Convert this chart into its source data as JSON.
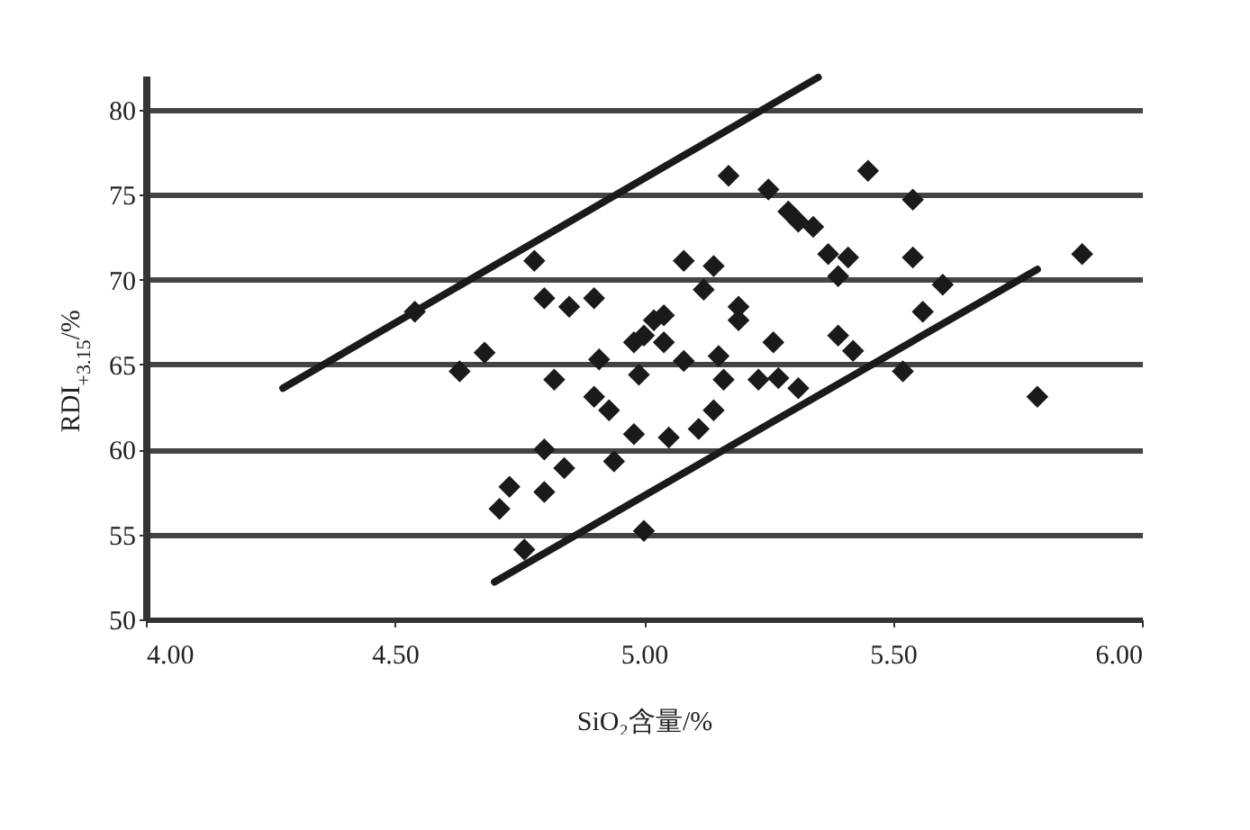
{
  "chart_data": {
    "type": "scatter",
    "xlabel": "SiO₂含量/%",
    "ylabel": "RDI$_{+3.15}$/%",
    "xlim": [
      4.0,
      6.0
    ],
    "xticks": [
      {
        "value": 4.0,
        "label": "4.00"
      },
      {
        "value": 4.5,
        "label": "4.50"
      },
      {
        "value": 5.0,
        "label": "5.00"
      },
      {
        "value": 5.5,
        "label": "5.50"
      },
      {
        "value": 6.0,
        "label": "6.00"
      }
    ],
    "ylim": [
      50,
      82
    ],
    "yticks": [
      50,
      55,
      60,
      65,
      70,
      75,
      80
    ],
    "grid": "y",
    "series": [
      {
        "color": "#1a1a1a",
        "marker": "diamond",
        "x": [
          4.78,
          4.8,
          4.85,
          4.9,
          4.54,
          4.63,
          4.68,
          4.82,
          4.91,
          4.9,
          4.93,
          4.98,
          4.98,
          5.02,
          4.99,
          4.8,
          4.84,
          4.8,
          4.73,
          4.71,
          4.76,
          4.94,
          5.0,
          5.17,
          5.25,
          5.45,
          5.54,
          5.31,
          5.29,
          5.34,
          5.08,
          5.14,
          5.12,
          5.19,
          5.19,
          5.37,
          5.41,
          5.39,
          5.54,
          5.6,
          5.56,
          5.88,
          5.79,
          5.52,
          5.39,
          5.42,
          5.26,
          5.04,
          5.0,
          5.04,
          5.08,
          5.15,
          5.16,
          5.23,
          5.27,
          5.31,
          5.14,
          5.11,
          5.05
        ],
        "values": [
          71.1,
          68.9,
          68.4,
          68.9,
          68.1,
          64.6,
          65.7,
          64.1,
          65.3,
          63.1,
          62.3,
          60.9,
          66.3,
          67.6,
          64.4,
          60.0,
          58.9,
          57.5,
          57.8,
          56.5,
          54.1,
          59.3,
          55.2,
          76.1,
          75.3,
          76.4,
          74.7,
          73.4,
          74.0,
          73.1,
          71.1,
          70.8,
          69.4,
          68.4,
          67.6,
          71.5,
          71.3,
          70.2,
          71.3,
          69.7,
          68.1,
          71.5,
          63.1,
          64.6,
          66.7,
          65.8,
          66.3,
          67.9,
          66.7,
          66.3,
          65.2,
          65.5,
          64.1,
          64.1,
          64.2,
          63.6,
          62.3,
          61.2,
          60.7
        ]
      },
      {
        "type": "line",
        "color": "#1a1a1a",
        "x": [
          4.275,
          5.35
        ],
        "values": [
          63.6,
          81.9
        ]
      },
      {
        "type": "line",
        "color": "#1a1a1a",
        "x": [
          4.7,
          5.79
        ],
        "values": [
          52.2,
          70.6
        ]
      }
    ]
  }
}
